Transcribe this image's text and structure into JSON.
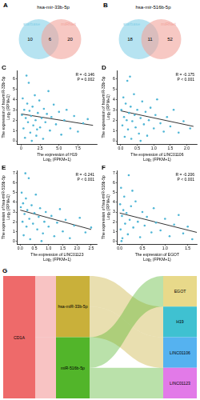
{
  "venn": [
    {
      "label": "A",
      "title": "hsa-mir-33b-5p",
      "sets": [
        {
          "name": "starbase",
          "color": "#86d0e8"
        },
        {
          "name": "miRNet",
          "color": "#f2a49b"
        }
      ],
      "counts": {
        "only_first": 10,
        "both": 6,
        "only_second": 20
      }
    },
    {
      "label": "B",
      "title": "hsa-mir-516b-5p",
      "sets": [
        {
          "name": "starbase",
          "color": "#86d0e8"
        },
        {
          "name": "miRNet",
          "color": "#f2a49b"
        }
      ],
      "counts": {
        "only_first": 18,
        "both": 11,
        "only_second": 52
      }
    }
  ],
  "chart_data": [
    {
      "type": "scatter",
      "label": "C",
      "color": "#4fb6d6",
      "marker": "circle",
      "grid": false,
      "x_label": [
        "The expression of H19",
        "Log₂ (FPKM+1)"
      ],
      "y_label": [
        "The expression of hsa-miR-33b-5p",
        "Log₂ (RPM+1)"
      ],
      "annotations": [
        "R = -0.146",
        "P = 0.002"
      ],
      "xlim": [
        -0.5,
        10
      ],
      "xticks": [
        0,
        2.5,
        {
          "value": 5,
          "label": "5.0"
        },
        7.5
      ],
      "ylim": [
        -0.3,
        6.8
      ],
      "yticks": [
        0,
        1,
        2,
        3,
        4,
        5,
        6
      ],
      "x": [
        0.1,
        0.2,
        0.3,
        0.4,
        0.5,
        0.6,
        0.8,
        0.9,
        1.0,
        1.1,
        1.2,
        1.3,
        1.5,
        1.6,
        1.8,
        1.9,
        2.0,
        2.2,
        2.4,
        2.5,
        2.7,
        2.9,
        3.0,
        3.2,
        3.4,
        3.6,
        3.8,
        4.0,
        4.3,
        4.6,
        5.0,
        5.3,
        5.7,
        6.0,
        6.5,
        7.0,
        7.5,
        8.2,
        8.8,
        0.7,
        1.4,
        2.1
      ],
      "values": [
        2.5,
        4.1,
        1.2,
        3.0,
        0.3,
        2.2,
        3.6,
        1.8,
        5.6,
        2.9,
        0.8,
        2.4,
        3.3,
        1.5,
        4.4,
        2.0,
        0.5,
        2.7,
        3.9,
        1.3,
        2.2,
        0.2,
        3.1,
        1.8,
        2.6,
        4.8,
        1.0,
        2.3,
        3.5,
        1.6,
        2.8,
        0.6,
        2.0,
        3.0,
        1.2,
        2.4,
        0.9,
        1.7,
        2.1,
        6.3,
        0.0,
        1.1
      ],
      "fit": {
        "x": [
          0,
          9.5
        ],
        "values": [
          2.6,
          1.5
        ],
        "color": "#000000"
      }
    },
    {
      "type": "scatter",
      "label": "D",
      "color": "#4fb6d6",
      "marker": "circle",
      "grid": false,
      "x_label": [
        "The expression of LINC01106",
        "Log₂ (FPKM+1)"
      ],
      "y_label": [
        "The expression of hsa-miR-33b-5p",
        "Log₂ (RPM+1)"
      ],
      "annotations": [
        "R = -0.175",
        "P < 0.001"
      ],
      "xlim": [
        -0.1,
        2.3
      ],
      "xticks": [
        {
          "value": 0,
          "label": "0.0"
        },
        0.5,
        {
          "value": 1,
          "label": "1.0"
        },
        1.5,
        {
          "value": 2,
          "label": "2.0"
        }
      ],
      "ylim": [
        -0.3,
        6.8
      ],
      "yticks": [
        0,
        1,
        2,
        3,
        4,
        5,
        6
      ],
      "x": [
        0.02,
        0.05,
        0.08,
        0.1,
        0.12,
        0.15,
        0.18,
        0.2,
        0.22,
        0.25,
        0.3,
        0.32,
        0.35,
        0.4,
        0.42,
        0.45,
        0.5,
        0.55,
        0.6,
        0.65,
        0.7,
        0.75,
        0.8,
        0.85,
        0.9,
        1.0,
        1.05,
        1.1,
        1.2,
        1.3,
        1.4,
        1.5,
        1.6,
        1.75,
        1.9,
        2.1,
        0.28,
        0.6
      ],
      "values": [
        3.0,
        1.5,
        4.2,
        2.3,
        0.4,
        3.6,
        2.0,
        5.8,
        1.1,
        2.7,
        3.3,
        0.2,
        1.9,
        4.5,
        2.5,
        1.3,
        3.0,
        0.7,
        2.2,
        3.8,
        1.6,
        2.8,
        0.5,
        2.0,
        3.2,
        1.2,
        2.5,
        4.0,
        1.7,
        0.9,
        2.3,
        1.4,
        3.0,
        0.8,
        1.9,
        1.2,
        6.2,
        0.0
      ],
      "fit": {
        "x": [
          0,
          2.2
        ],
        "values": [
          2.9,
          1.4
        ],
        "color": "#000000"
      }
    },
    {
      "type": "scatter",
      "label": "E",
      "color": "#4fb6d6",
      "marker": "circle",
      "grid": false,
      "x_label": [
        "The expression of LINC01123",
        "Log₂ (FPKM+1)"
      ],
      "y_label": [
        "The expression of hsa-miR-516b-5p",
        "Log₂ (RPM+1)"
      ],
      "annotations": [
        "R = -0.241",
        "P < 0.001"
      ],
      "xlim": [
        -0.1,
        2.7
      ],
      "xticks": [
        {
          "value": 0,
          "label": "0.0"
        },
        0.5,
        {
          "value": 1,
          "label": "1.0"
        },
        1.5,
        {
          "value": 2,
          "label": "2.0"
        },
        2.5
      ],
      "ylim": [
        -0.3,
        7.3
      ],
      "yticks": [
        0,
        1,
        2,
        3,
        4,
        5,
        6,
        7
      ],
      "x": [
        0.02,
        0.05,
        0.08,
        0.1,
        0.12,
        0.15,
        0.2,
        0.22,
        0.25,
        0.3,
        0.32,
        0.35,
        0.4,
        0.45,
        0.5,
        0.55,
        0.6,
        0.65,
        0.7,
        0.8,
        0.85,
        0.9,
        1.0,
        1.1,
        1.2,
        1.3,
        1.4,
        1.5,
        1.6,
        1.75,
        1.9,
        2.1,
        2.3,
        2.5,
        0.18,
        0.75
      ],
      "values": [
        3.5,
        5.0,
        2.0,
        3.9,
        0.6,
        2.8,
        4.4,
        1.5,
        3.2,
        6.5,
        2.3,
        0.2,
        3.7,
        1.8,
        2.9,
        4.8,
        1.2,
        2.5,
        3.4,
        0.8,
        2.0,
        3.0,
        1.5,
        2.6,
        0.5,
        1.9,
        3.3,
        1.0,
        2.2,
        0.3,
        1.6,
        2.4,
        0.9,
        1.4,
        7.0,
        0.0
      ],
      "fit": {
        "x": [
          0,
          2.5
        ],
        "values": [
          3.2,
          1.2
        ],
        "color": "#000000"
      }
    },
    {
      "type": "scatter",
      "label": "F",
      "color": "#4fb6d6",
      "marker": "circle",
      "grid": false,
      "x_label": [
        "The expression of EGOT",
        "Log₂ (FPKM+1)"
      ],
      "y_label": [
        "The expression of hsa-miR-516b-5p",
        "Log₂ (RPM+1)"
      ],
      "annotations": [
        "R = -0.206",
        "P < 0.001"
      ],
      "xlim": [
        -0.05,
        1.7
      ],
      "xticks": [
        {
          "value": 0,
          "label": "0.0"
        },
        0.5,
        {
          "value": 1,
          "label": "1.0"
        },
        1.5
      ],
      "ylim": [
        -0.3,
        7.3
      ],
      "yticks": [
        0,
        1,
        2,
        3,
        4,
        5,
        6,
        7
      ],
      "x": [
        0.01,
        0.02,
        0.03,
        0.05,
        0.06,
        0.08,
        0.1,
        0.12,
        0.15,
        0.18,
        0.2,
        0.22,
        0.25,
        0.3,
        0.35,
        0.4,
        0.45,
        0.5,
        0.55,
        0.6,
        0.7,
        0.75,
        0.8,
        0.9,
        1.0,
        1.1,
        1.2,
        1.3,
        1.4,
        1.5,
        1.6,
        0.04,
        0.28
      ],
      "values": [
        3.8,
        1.2,
        5.5,
        2.6,
        0.3,
        3.2,
        4.6,
        1.8,
        2.9,
        0.7,
        6.8,
        2.2,
        3.6,
        1.4,
        4.1,
        2.0,
        0.4,
        3.0,
        1.6,
        2.5,
        0.9,
        3.4,
        1.9,
        1.1,
        2.3,
        0.5,
        1.7,
        2.7,
        0.8,
        1.5,
        0.2,
        0.0,
        5.2
      ],
      "fit": {
        "x": [
          0,
          1.7
        ],
        "values": [
          2.9,
          0.9
        ],
        "color": "#000000"
      }
    }
  ],
  "sankey": {
    "label": "G",
    "nodes": [
      {
        "name": "CD1A",
        "color": "#ee6a6a"
      },
      {
        "name": "hsa-miR-33b-5p",
        "color": "#c9b03a"
      },
      {
        "name": "miR-516b-5p",
        "color": "#52b52a"
      },
      {
        "name": "EGOT",
        "color": "#e8d98a"
      },
      {
        "name": "H19",
        "color": "#3fc1d1"
      },
      {
        "name": "LINC01106",
        "color": "#55b2f0"
      },
      {
        "name": "LINC01123",
        "color": "#e27ae8"
      }
    ],
    "links": [
      {
        "source": "CD1A",
        "target": "hsa-miR-33b-5p",
        "value": 2
      },
      {
        "source": "CD1A",
        "target": "miR-516b-5p",
        "value": 2
      },
      {
        "source": "hsa-miR-33b-5p",
        "target": "H19",
        "value": 1
      },
      {
        "source": "hsa-miR-33b-5p",
        "target": "LINC01106",
        "value": 1
      },
      {
        "source": "miR-516b-5p",
        "target": "EGOT",
        "value": 1
      },
      {
        "source": "miR-516b-5p",
        "target": "LINC01123",
        "value": 1
      }
    ]
  }
}
